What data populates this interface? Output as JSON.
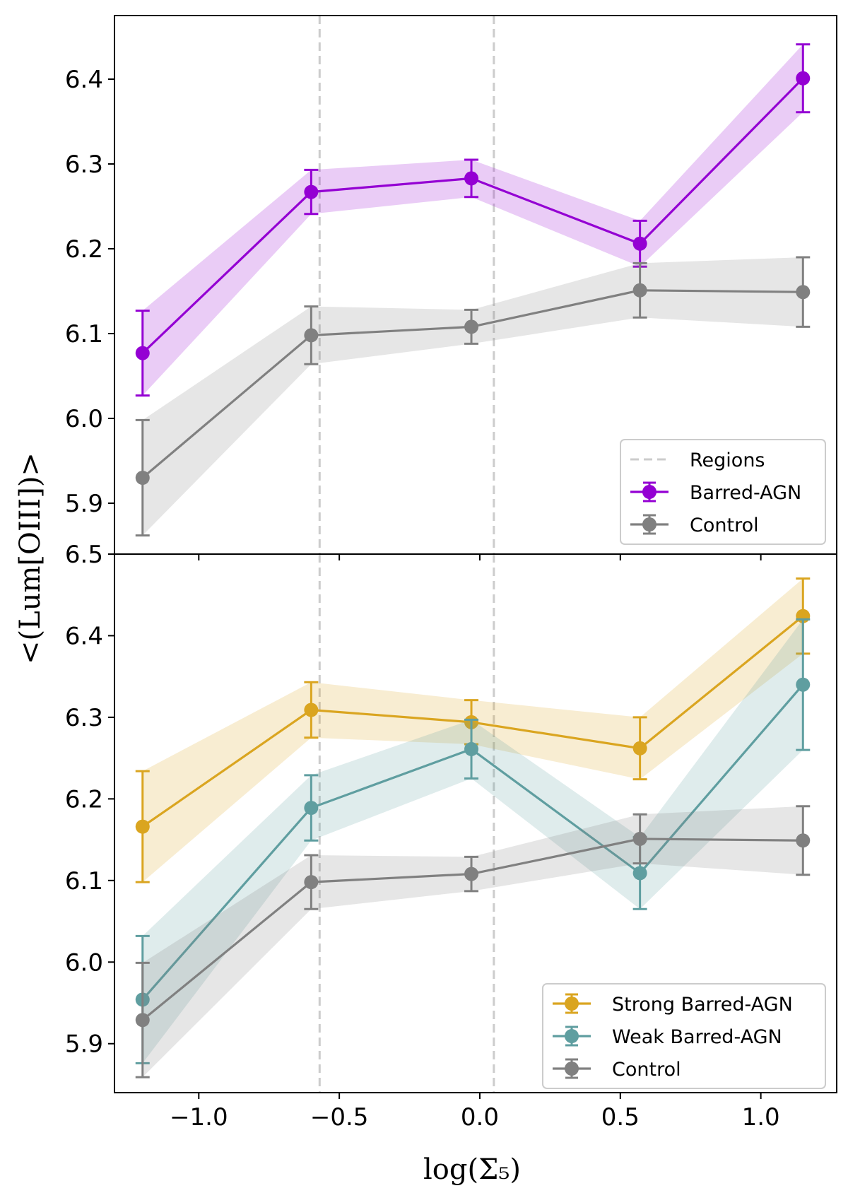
{
  "figure": {
    "xlabel": "log(Σ₅)",
    "ylabel": "<(Lum[OIII])>",
    "xlim": [
      -1.3,
      1.27
    ],
    "xticks": [
      -1.0,
      -0.5,
      0.0,
      0.5,
      1.0
    ],
    "xtick_labels": [
      "−1.0",
      "−0.5",
      "0.0",
      "0.5",
      "1.0"
    ],
    "region_lines": [
      -0.57,
      0.05
    ],
    "region_color": "#cccccc"
  },
  "chart_data": [
    {
      "type": "line",
      "panel": "top",
      "ylim": [
        5.84,
        6.475
      ],
      "yticks": [
        5.9,
        6.0,
        6.1,
        6.2,
        6.3,
        6.4
      ],
      "ytick_labels": [
        "5.9",
        "6.0",
        "6.1",
        "6.2",
        "6.3",
        "6.4"
      ],
      "legend": {
        "position": "lower-right",
        "entries": [
          "Regions",
          "Barred-AGN",
          "Control"
        ]
      },
      "series": [
        {
          "name": "Barred-AGN",
          "color": "#9400d3",
          "x": [
            -1.2,
            -0.6,
            -0.03,
            0.57,
            1.15
          ],
          "y": [
            6.077,
            6.267,
            6.283,
            6.206,
            6.401
          ],
          "err": [
            0.05,
            0.026,
            0.022,
            0.027,
            0.04
          ]
        },
        {
          "name": "Control",
          "color": "#808080",
          "x": [
            -1.2,
            -0.6,
            -0.03,
            0.57,
            1.15
          ],
          "y": [
            5.93,
            6.098,
            6.108,
            6.151,
            6.149
          ],
          "err": [
            0.068,
            0.034,
            0.02,
            0.032,
            0.041
          ]
        }
      ]
    },
    {
      "type": "line",
      "panel": "bottom",
      "ylim": [
        5.84,
        6.5
      ],
      "yticks": [
        5.9,
        6.0,
        6.1,
        6.2,
        6.3,
        6.4,
        6.5
      ],
      "ytick_labels": [
        "5.9",
        "6.0",
        "6.1",
        "6.2",
        "6.3",
        "6.4",
        "6.5"
      ],
      "legend": {
        "position": "lower-right",
        "entries": [
          "Strong Barred-AGN",
          "Weak Barred-AGN",
          "Control"
        ]
      },
      "series": [
        {
          "name": "Strong Barred-AGN",
          "color": "#daa520",
          "x": [
            -1.2,
            -0.6,
            -0.03,
            0.57,
            1.15
          ],
          "y": [
            6.166,
            6.309,
            6.294,
            6.262,
            6.424
          ],
          "err": [
            0.068,
            0.034,
            0.027,
            0.038,
            0.046
          ]
        },
        {
          "name": "Weak Barred-AGN",
          "color": "#5f9ea0",
          "x": [
            -1.2,
            -0.6,
            -0.03,
            0.57,
            1.15
          ],
          "y": [
            5.954,
            6.189,
            6.261,
            6.109,
            6.34
          ],
          "err": [
            0.078,
            0.04,
            0.036,
            0.044,
            0.08
          ]
        },
        {
          "name": "Control",
          "color": "#808080",
          "x": [
            -1.2,
            -0.6,
            -0.03,
            0.57,
            1.15
          ],
          "y": [
            5.929,
            6.098,
            6.108,
            6.151,
            6.149
          ],
          "err": [
            0.07,
            0.033,
            0.021,
            0.03,
            0.042
          ]
        }
      ]
    }
  ]
}
